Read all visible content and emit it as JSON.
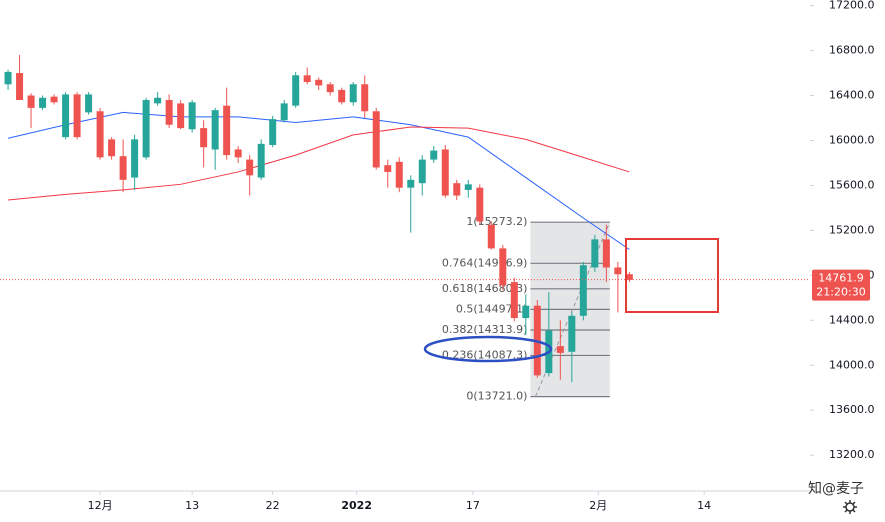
{
  "chart_data": {
    "type": "candlestick",
    "up_color": "#26a69a",
    "down_color": "#ef5350",
    "xlim": [
      -0.7,
      69.7
    ],
    "ylim": [
      12890,
      17250
    ],
    "yticks": [
      {
        "value": 17200,
        "label": "17200.0"
      },
      {
        "value": 16800,
        "label": "16800.0"
      },
      {
        "value": 16400,
        "label": "16400.0"
      },
      {
        "value": 16000,
        "label": "16000.0"
      },
      {
        "value": 15600,
        "label": "15600.0"
      },
      {
        "value": 15200,
        "label": "15200.0"
      },
      {
        "value": 14800,
        "label": "14800.0"
      },
      {
        "value": 14400,
        "label": "14400.0"
      },
      {
        "value": 14000,
        "label": "14000.0"
      },
      {
        "value": 13600,
        "label": "13600.0"
      },
      {
        "value": 13200,
        "label": "13200.0"
      }
    ],
    "xticks": [
      {
        "value": 8,
        "label": "12月"
      },
      {
        "value": 16,
        "label": "13"
      },
      {
        "value": 23,
        "label": "22"
      },
      {
        "value": 30.3,
        "label": "2022"
      },
      {
        "value": 40.4,
        "label": "17"
      },
      {
        "value": 51.3,
        "label": "2月"
      },
      {
        "value": 60.5,
        "label": "14"
      }
    ],
    "candles": {
      "open": [
        16500,
        16600,
        16400,
        16290,
        16390,
        16030,
        16410,
        16250,
        16260,
        16010,
        15860,
        15670,
        15850,
        16330,
        16360,
        16330,
        16100,
        16110,
        15920,
        16310,
        15920,
        15830,
        15670,
        15960,
        16180,
        16310,
        16580,
        16540,
        16500,
        16450,
        16340,
        16500,
        16260,
        15780,
        15810,
        15580,
        15620,
        15830,
        15920,
        15620,
        15560,
        15580,
        15250,
        15040,
        14740,
        14420,
        14530,
        13930,
        14170,
        14120,
        14440,
        14870,
        15120,
        14870,
        14810
      ],
      "high": [
        16630,
        16760,
        16420,
        16400,
        16410,
        16430,
        16430,
        16430,
        16290,
        16030,
        16010,
        16050,
        16380,
        16430,
        16410,
        16360,
        16360,
        16180,
        16290,
        16470,
        15950,
        15870,
        16010,
        16220,
        16360,
        16610,
        16650,
        16560,
        16520,
        16470,
        16520,
        16580,
        16290,
        15830,
        15850,
        15690,
        15870,
        15950,
        15960,
        15650,
        15650,
        15610,
        15280,
        15070,
        14780,
        14630,
        14580,
        14650,
        14400,
        14470,
        14920,
        15160,
        15250,
        14920,
        14830
      ],
      "low": [
        16450,
        16360,
        16110,
        16270,
        16320,
        16010,
        16010,
        16230,
        15830,
        15830,
        15540,
        15560,
        15830,
        16310,
        16110,
        16100,
        16070,
        15760,
        15740,
        15830,
        15800,
        15510,
        15650,
        15940,
        16160,
        16290,
        16500,
        16450,
        16400,
        16320,
        16310,
        16200,
        15740,
        15580,
        15540,
        15180,
        15510,
        15800,
        15490,
        15470,
        15490,
        15250,
        15030,
        14670,
        14390,
        14270,
        13890,
        13900,
        13870,
        13850,
        14400,
        14830,
        14740,
        14470,
        14740
      ],
      "close": [
        16610,
        16360,
        16290,
        16380,
        16340,
        16410,
        16030,
        16410,
        15850,
        15860,
        15650,
        16010,
        16360,
        16380,
        16140,
        16110,
        16340,
        15940,
        16270,
        15870,
        15850,
        15690,
        15970,
        16190,
        16330,
        16580,
        16520,
        16490,
        16430,
        16340,
        16500,
        16260,
        15760,
        15720,
        15580,
        15650,
        15830,
        15910,
        15510,
        15510,
        15610,
        15280,
        15040,
        14710,
        14420,
        14530,
        13910,
        14310,
        14110,
        14440,
        14890,
        15120,
        14870,
        14810,
        14760
      ]
    },
    "series": [
      {
        "color": "#2962ff",
        "x": [
          0,
          5,
          10,
          15,
          20,
          25,
          30,
          35,
          40,
          45,
          50,
          54
        ],
        "values": [
          16020,
          16140,
          16250,
          16210,
          16210,
          16160,
          16210,
          16140,
          16030,
          15670,
          15310,
          15030
        ]
      },
      {
        "color": "#f23645",
        "x": [
          0,
          5,
          10,
          15,
          20,
          25,
          30,
          35,
          40,
          45,
          50,
          54
        ],
        "values": [
          15470,
          15520,
          15560,
          15610,
          15720,
          15870,
          16050,
          16120,
          16110,
          16010,
          15850,
          15720
        ]
      }
    ],
    "fib": {
      "x_range": [
        45.4,
        52.3
      ],
      "levels": [
        {
          "value": 15273.2,
          "label": "1(15273.2)"
        },
        {
          "value": 14906.9,
          "label": "0.764(14906.9)"
        },
        {
          "value": 14680.3,
          "label": "0.618(14680.3)"
        },
        {
          "value": 14497.1,
          "label": "0.5(14497.1)"
        },
        {
          "value": 14313.9,
          "label": "0.382(14313.9)"
        },
        {
          "value": 14087.3,
          "label": "0.236(14087.3)"
        },
        {
          "value": 13721.0,
          "label": "0(13721.0)"
        }
      ]
    },
    "last_price": 14761.9,
    "countdown": "21:20:30",
    "watermark": "知@麦子"
  }
}
